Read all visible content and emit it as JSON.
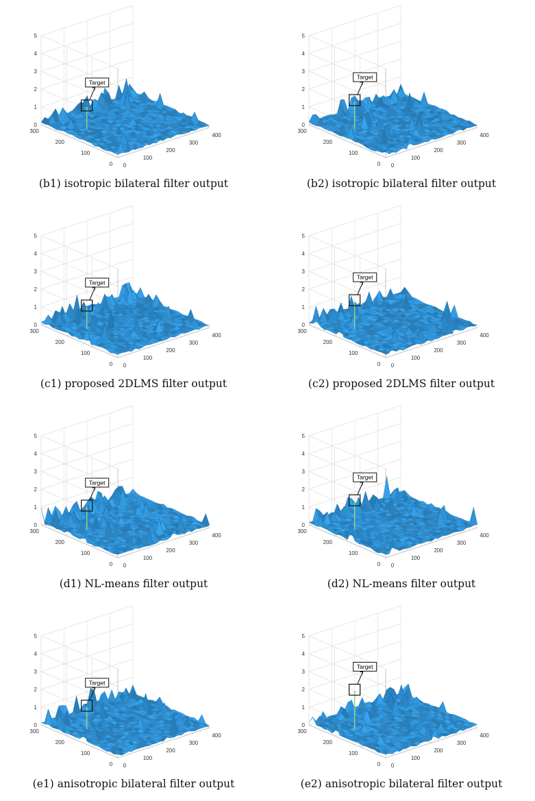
{
  "chart_data": [
    {
      "id": "b1",
      "type": "surface",
      "caption": "(b1) isotropic bilateral filter output",
      "annotation": "Target",
      "zlim": [
        0,
        5
      ],
      "z_ticks": [
        "0",
        "1",
        "2",
        "3",
        "4",
        "5"
      ],
      "x_ticks": [
        "0",
        "100",
        "200",
        "300",
        "400"
      ],
      "y_ticks": [
        "0",
        "100",
        "200",
        "300"
      ],
      "target_peak": 1.4
    },
    {
      "id": "b2",
      "type": "surface",
      "caption": "(b2) isotropic bilateral filter output",
      "annotation": "Target",
      "zlim": [
        0,
        5
      ],
      "z_ticks": [
        "0",
        "1",
        "2",
        "3",
        "4",
        "5"
      ],
      "x_ticks": [
        "0",
        "100",
        "200",
        "300",
        "400"
      ],
      "y_ticks": [
        "0",
        "100",
        "200",
        "300"
      ],
      "target_peak": 1.7
    },
    {
      "id": "c1",
      "type": "surface",
      "caption": "(c1) proposed 2DLMS filter output",
      "annotation": "Target",
      "zlim": [
        0,
        5
      ],
      "z_ticks": [
        "0",
        "1",
        "2",
        "3",
        "4",
        "5"
      ],
      "x_ticks": [
        "0",
        "100",
        "200",
        "300",
        "400"
      ],
      "y_ticks": [
        "0",
        "100",
        "200",
        "300"
      ],
      "target_peak": 1.4
    },
    {
      "id": "c2",
      "type": "surface",
      "caption": "(c2) proposed 2DLMS filter output",
      "annotation": "Target",
      "zlim": [
        0,
        5
      ],
      "z_ticks": [
        "0",
        "1",
        "2",
        "3",
        "4",
        "5"
      ],
      "x_ticks": [
        "0",
        "100",
        "200",
        "300",
        "400"
      ],
      "y_ticks": [
        "0",
        "100",
        "200",
        "300"
      ],
      "target_peak": 1.7
    },
    {
      "id": "d1",
      "type": "surface",
      "caption": "(d1) NL-means filter output",
      "annotation": "Target",
      "zlim": [
        0,
        5
      ],
      "z_ticks": [
        "0",
        "1",
        "2",
        "3",
        "4",
        "5"
      ],
      "x_ticks": [
        "0",
        "100",
        "200",
        "300",
        "400"
      ],
      "y_ticks": [
        "0",
        "100",
        "200",
        "300"
      ],
      "target_peak": 1.4
    },
    {
      "id": "d2",
      "type": "surface",
      "caption": "(d2) NL-means filter output",
      "annotation": "Target",
      "zlim": [
        0,
        5
      ],
      "z_ticks": [
        "0",
        "1",
        "2",
        "3",
        "4",
        "5"
      ],
      "x_ticks": [
        "0",
        "100",
        "200",
        "300",
        "400"
      ],
      "y_ticks": [
        "0",
        "100",
        "200",
        "300"
      ],
      "target_peak": 1.7
    },
    {
      "id": "e1",
      "type": "surface",
      "caption": "(e1) anisotropic bilateral filter output",
      "annotation": "Target",
      "zlim": [
        0,
        5
      ],
      "z_ticks": [
        "0",
        "1",
        "2",
        "3",
        "4",
        "5"
      ],
      "x_ticks": [
        "0",
        "100",
        "200",
        "300",
        "400"
      ],
      "y_ticks": [
        "0",
        "100",
        "200",
        "300"
      ],
      "target_peak": 1.4
    },
    {
      "id": "e2",
      "type": "surface",
      "caption": "(e2) anisotropic bilateral filter output",
      "annotation": "Target",
      "zlim": [
        0,
        5
      ],
      "z_ticks": [
        "0",
        "1",
        "2",
        "3",
        "4",
        "5"
      ],
      "x_ticks": [
        "0",
        "100",
        "200",
        "300",
        "400"
      ],
      "y_ticks": [
        "0",
        "100",
        "200",
        "300"
      ],
      "target_peak": 2.3
    }
  ],
  "colors": {
    "surface_fill": "#2f8fd0",
    "surface_edge": "#1a6fae",
    "spike": "#8fd08f",
    "grid": "#dedede",
    "axis_box": "#b9b9b9"
  }
}
